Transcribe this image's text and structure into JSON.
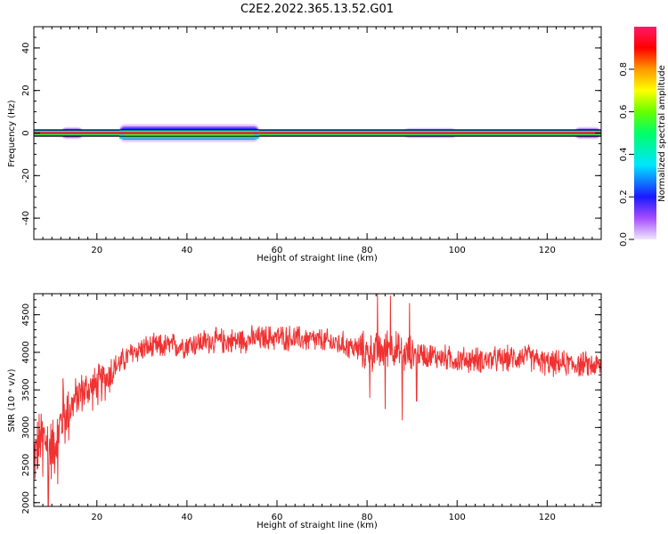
{
  "title": "C2E2.2022.365.13.52.G01",
  "chart_data": [
    {
      "type": "heatmap",
      "xlabel": "Height of straight line (km)",
      "ylabel": "Frequency (Hz)",
      "xlim": [
        6,
        132
      ],
      "ylim": [
        -50,
        50
      ],
      "xticks": [
        20,
        40,
        60,
        80,
        100,
        120
      ],
      "yticks": [
        -40,
        -20,
        0,
        20,
        40
      ],
      "colorbar": {
        "label": "Normalized spectral amplitude",
        "range": [
          0.0,
          1.0
        ],
        "ticks": [
          "0.0",
          "0.2",
          "0.4",
          "0.6",
          "0.8"
        ],
        "colormap": [
          "#f0e6ff",
          "#a64dff",
          "#1a1aff",
          "#00e6ff",
          "#00ff66",
          "#66ff00",
          "#ffff00",
          "#ff9900",
          "#ff0000",
          "#ff1a66"
        ]
      },
      "band": {
        "center_hz": 0,
        "core_halfwidth_hz": 1.5,
        "broadening": [
          {
            "x_from": 12,
            "x_to": 17,
            "halfwidth_hz": 3
          },
          {
            "x_from": 25,
            "x_to": 56,
            "halfwidth_hz": 4.5
          },
          {
            "x_from": 88,
            "x_to": 100,
            "halfwidth_hz": 2.5
          },
          {
            "x_from": 126,
            "x_to": 132,
            "halfwidth_hz": 3
          }
        ]
      },
      "grid": false
    },
    {
      "type": "line",
      "xlabel": "Height of straight line (km)",
      "ylabel": "SNR (10 * v/v)",
      "xlim": [
        6,
        132
      ],
      "ylim": [
        1950,
        4780
      ],
      "xticks": [
        20,
        40,
        60,
        80,
        100,
        120
      ],
      "yticks": [
        2000,
        2500,
        3000,
        3500,
        4000,
        4500
      ],
      "color": "#f03232",
      "series_envelope": {
        "x": [
          6,
          8,
          10,
          12,
          14,
          16,
          18,
          20,
          22,
          24,
          26,
          28,
          30,
          35,
          40,
          45,
          50,
          55,
          60,
          65,
          70,
          75,
          80,
          83,
          85,
          88,
          90,
          95,
          100,
          105,
          110,
          115,
          120,
          125,
          132
        ],
        "y": [
          2600,
          2900,
          2700,
          3050,
          3250,
          3450,
          3500,
          3550,
          3650,
          3800,
          3900,
          4000,
          4050,
          4080,
          4100,
          4150,
          4150,
          4180,
          4200,
          4180,
          4150,
          4100,
          4000,
          4000,
          4100,
          3950,
          4000,
          3950,
          3900,
          3900,
          3900,
          3950,
          3850,
          3850,
          3820
        ]
      },
      "grid": false
    }
  ]
}
